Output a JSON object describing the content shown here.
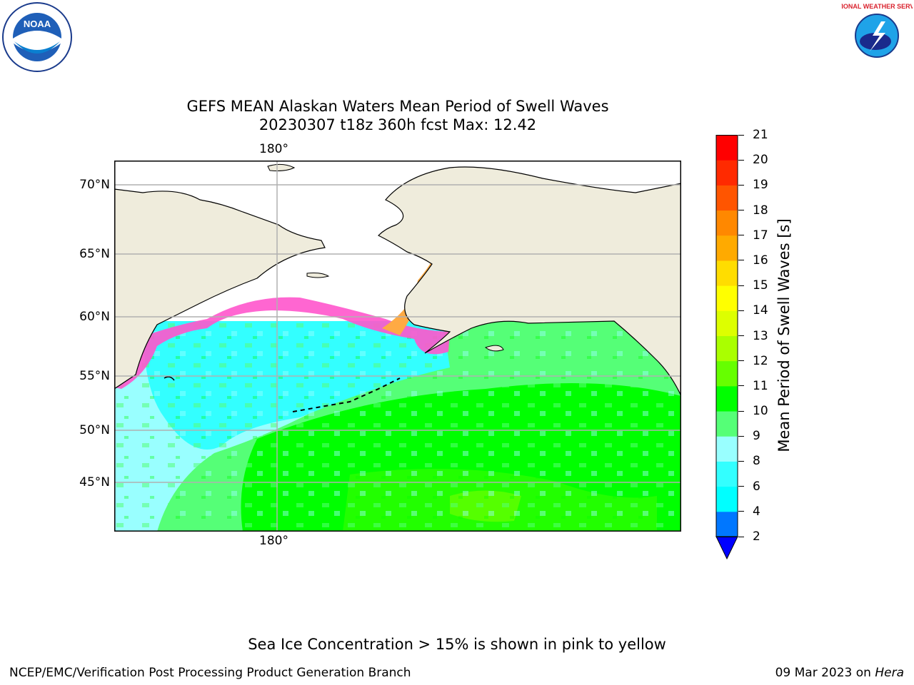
{
  "title": "GEFS MEAN Alaskan Waters Mean Period of Swell Waves",
  "subtitle": "20230307 t18z 360h fcst   Max: 12.42",
  "logos": {
    "left": "NOAA",
    "right": "NATIONAL WEATHER SERVICE"
  },
  "map": {
    "lon_label_top": "180°",
    "lon_label_bottom": "180°",
    "lat_labels": [
      "70°N",
      "65°N",
      "60°N",
      "55°N",
      "50°N",
      "45°N"
    ],
    "colors": {
      "land": "#efecdc",
      "ocean_short": "#99ffff",
      "ocean_mid": "#33ffff",
      "ocean_green": "#00ff00",
      "ocean_lightgreen": "#55ff77",
      "ice": "#ff55cc"
    }
  },
  "colorbar": {
    "label": "Mean Period of Swell Waves [s]",
    "ticks": [
      "21",
      "20",
      "19",
      "18",
      "17",
      "16",
      "15",
      "14",
      "13",
      "12",
      "11",
      "10",
      "9",
      "8",
      "6",
      "4",
      "2"
    ],
    "colors": [
      "#0000ff",
      "#0077ff",
      "#00ffff",
      "#33ffff",
      "#99ffff",
      "#55ff77",
      "#00ff00",
      "#66ff00",
      "#aaff00",
      "#ddff00",
      "#ffff00",
      "#ffdd00",
      "#ffaa00",
      "#ff8800",
      "#ff5500",
      "#ff2a00",
      "#ff0000"
    ]
  },
  "footer": {
    "note": "Sea Ice Concentration > 15% is shown in pink to yellow",
    "credit": "NCEP/EMC/Verification Post Processing Product Generation Branch",
    "date": "09 Mar 2023 on",
    "host": "Hera"
  }
}
